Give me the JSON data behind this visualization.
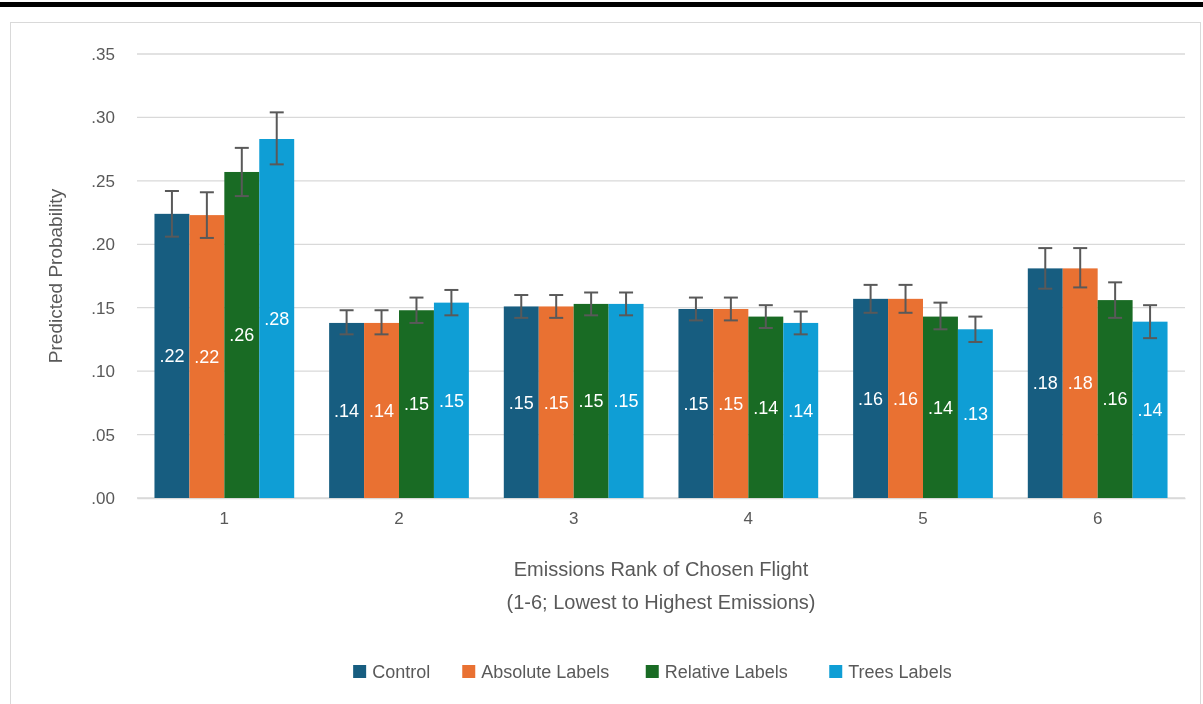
{
  "chart_data": {
    "type": "bar",
    "xlabel": "Emissions Rank of Chosen Flight\n(1-6; Lowest to Highest Emissions)",
    "ylabel": "Predicted Probability",
    "categories": [
      "1",
      "2",
      "3",
      "4",
      "5",
      "6"
    ],
    "series": [
      {
        "name": "Control",
        "color": "#175d80",
        "values": [
          0.224,
          0.138,
          0.151,
          0.149,
          0.157,
          0.181
        ],
        "errors": [
          [
            0.206,
            0.242
          ],
          [
            0.129,
            0.148
          ],
          [
            0.142,
            0.16
          ],
          [
            0.14,
            0.158
          ],
          [
            0.146,
            0.168
          ],
          [
            0.165,
            0.197
          ]
        ],
        "value_labels": [
          ".22",
          ".14",
          ".15",
          ".15",
          ".16",
          ".18"
        ]
      },
      {
        "name": "Absolute Labels",
        "color": "#e97132",
        "values": [
          0.223,
          0.138,
          0.151,
          0.149,
          0.157,
          0.181
        ],
        "errors": [
          [
            0.205,
            0.241
          ],
          [
            0.129,
            0.148
          ],
          [
            0.142,
            0.16
          ],
          [
            0.14,
            0.158
          ],
          [
            0.146,
            0.168
          ],
          [
            0.166,
            0.197
          ]
        ],
        "value_labels": [
          ".22",
          ".14",
          ".15",
          ".15",
          ".16",
          ".18"
        ]
      },
      {
        "name": "Relative Labels",
        "color": "#196b24",
        "values": [
          0.257,
          0.148,
          0.153,
          0.143,
          0.143,
          0.156
        ],
        "errors": [
          [
            0.238,
            0.276
          ],
          [
            0.138,
            0.158
          ],
          [
            0.144,
            0.162
          ],
          [
            0.134,
            0.152
          ],
          [
            0.133,
            0.154
          ],
          [
            0.142,
            0.17
          ]
        ],
        "value_labels": [
          ".26",
          ".15",
          ".15",
          ".14",
          ".14",
          ".16"
        ]
      },
      {
        "name": "Trees Labels",
        "color": "#0f9ed5",
        "values": [
          0.283,
          0.154,
          0.153,
          0.138,
          0.133,
          0.139
        ],
        "errors": [
          [
            0.263,
            0.304
          ],
          [
            0.144,
            0.164
          ],
          [
            0.144,
            0.162
          ],
          [
            0.129,
            0.147
          ],
          [
            0.123,
            0.143
          ],
          [
            0.126,
            0.152
          ]
        ],
        "value_labels": [
          ".28",
          ".15",
          ".15",
          ".14",
          ".13",
          ".14"
        ]
      }
    ],
    "ylim": [
      0,
      0.35
    ],
    "yticks": [
      {
        "value": 0,
        "label": ".00"
      },
      {
        "value": 0.05,
        "label": ".05"
      },
      {
        "value": 0.1,
        "label": ".10"
      },
      {
        "value": 0.15,
        "label": ".15"
      },
      {
        "value": 0.2,
        "label": ".20"
      },
      {
        "value": 0.25,
        "label": ".25"
      },
      {
        "value": 0.3,
        "label": ".30"
      },
      {
        "value": 0.35,
        "label": ".35"
      }
    ],
    "grid": "y",
    "legend": "bottom"
  }
}
